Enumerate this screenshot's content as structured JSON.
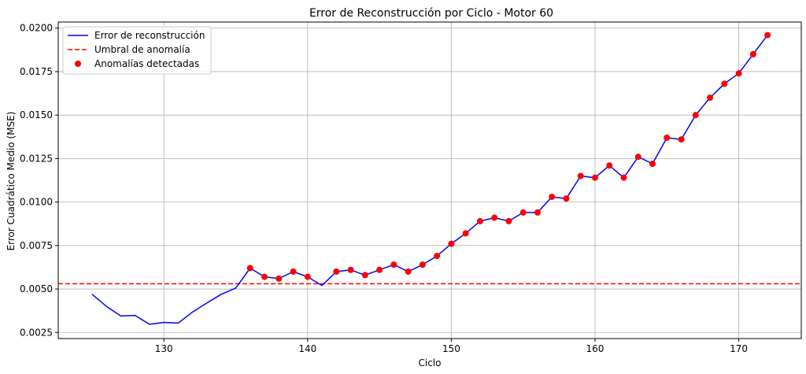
{
  "chart_data": {
    "type": "line",
    "title": "Error de Reconstrucción por Ciclo - Motor 60",
    "xlabel": "Ciclo",
    "ylabel": "Error Cuadrático Medio (MSE)",
    "xlim": [
      122.65,
      174.35
    ],
    "ylim": [
      0.00215,
      0.02035
    ],
    "x_ticks": [
      130,
      140,
      150,
      160,
      170
    ],
    "y_ticks": [
      0.0025,
      0.005,
      0.0075,
      0.01,
      0.0125,
      0.015,
      0.0175,
      0.02
    ],
    "x_tick_labels": [
      "130",
      "140",
      "150",
      "160",
      "170"
    ],
    "y_tick_labels": [
      "0.0025",
      "0.0050",
      "0.0075",
      "0.0100",
      "0.0125",
      "0.0150",
      "0.0175",
      "0.0200"
    ],
    "grid": true,
    "legend_position": "top-left",
    "series": [
      {
        "name": "Error de reconstrucción",
        "kind": "line",
        "color": "#0000ff",
        "x": [
          125,
          126,
          127,
          128,
          129,
          130,
          131,
          132,
          133,
          134,
          135,
          136,
          137,
          138,
          139,
          140,
          141,
          142,
          143,
          144,
          145,
          146,
          147,
          148,
          149,
          150,
          151,
          152,
          153,
          154,
          155,
          156,
          157,
          158,
          159,
          160,
          161,
          162,
          163,
          164,
          165,
          166,
          167,
          168,
          169,
          170,
          171,
          172
        ],
        "y": [
          0.0047,
          0.004,
          0.00345,
          0.00348,
          0.00297,
          0.00308,
          0.00304,
          0.00368,
          0.0042,
          0.0047,
          0.00505,
          0.0062,
          0.0057,
          0.0056,
          0.006,
          0.0057,
          0.0052,
          0.006,
          0.0061,
          0.0058,
          0.0061,
          0.0064,
          0.006,
          0.0064,
          0.0069,
          0.0076,
          0.0082,
          0.0089,
          0.0091,
          0.0089,
          0.0094,
          0.0094,
          0.0103,
          0.0102,
          0.0115,
          0.0114,
          0.0121,
          0.0114,
          0.0126,
          0.0122,
          0.0137,
          0.0136,
          0.015,
          0.016,
          0.0168,
          0.0174,
          0.0185,
          0.0196
        ]
      },
      {
        "name": "Umbral de anomalía",
        "kind": "hline",
        "color": "#ff0000",
        "y": 0.0053
      },
      {
        "name": "Anomalías detectadas",
        "kind": "scatter",
        "color": "#ff0000",
        "x": [
          136,
          137,
          138,
          139,
          140,
          142,
          143,
          144,
          145,
          146,
          147,
          148,
          149,
          150,
          151,
          152,
          153,
          154,
          155,
          156,
          157,
          158,
          159,
          160,
          161,
          162,
          163,
          164,
          165,
          166,
          167,
          168,
          169,
          170,
          171,
          172
        ],
        "y": [
          0.0062,
          0.0057,
          0.0056,
          0.006,
          0.0057,
          0.006,
          0.0061,
          0.0058,
          0.0061,
          0.0064,
          0.006,
          0.0064,
          0.0069,
          0.0076,
          0.0082,
          0.0089,
          0.0091,
          0.0089,
          0.0094,
          0.0094,
          0.0103,
          0.0102,
          0.0115,
          0.0114,
          0.0121,
          0.0114,
          0.0126,
          0.0122,
          0.0137,
          0.0136,
          0.015,
          0.016,
          0.0168,
          0.0174,
          0.0185,
          0.0196
        ]
      }
    ]
  }
}
